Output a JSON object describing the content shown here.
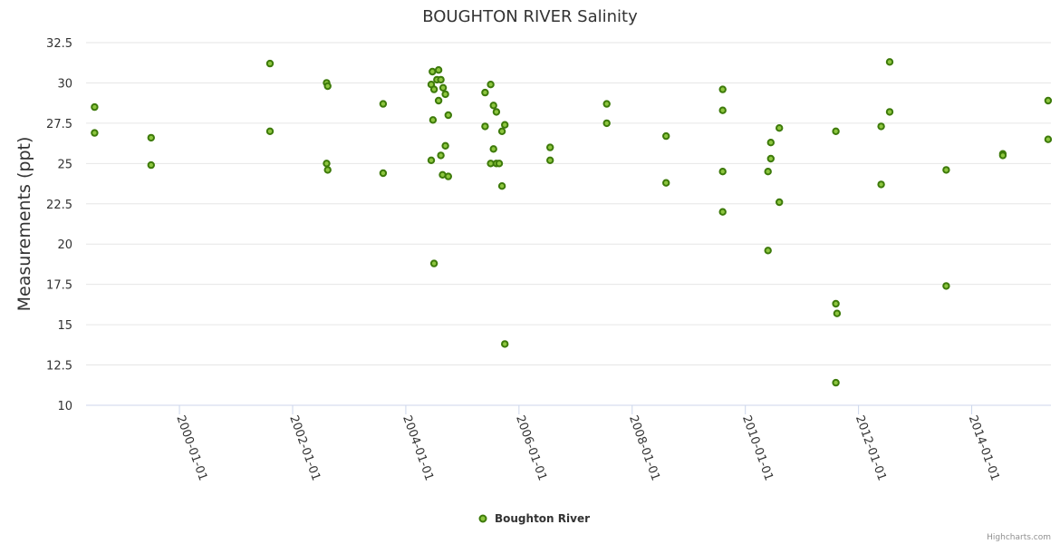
{
  "chart_data": {
    "type": "scatter",
    "title": "BOUGHTON RIVER Salinity",
    "ylabel": "Measurements (ppt)",
    "xlabel": "",
    "ylim": [
      10,
      32.5
    ],
    "y_ticks": [
      "10",
      "12.5",
      "15",
      "17.5",
      "20",
      "22.5",
      "25",
      "27.5",
      "30",
      "32.5"
    ],
    "xlim": [
      1998.35,
      2015.4
    ],
    "x_ticks": [
      {
        "year": 2000,
        "label": "2000-01-01"
      },
      {
        "year": 2002,
        "label": "2002-01-01"
      },
      {
        "year": 2004,
        "label": "2004-01-01"
      },
      {
        "year": 2006,
        "label": "2006-01-01"
      },
      {
        "year": 2008,
        "label": "2008-01-01"
      },
      {
        "year": 2010,
        "label": "2010-01-01"
      },
      {
        "year": 2012,
        "label": "2012-01-01"
      },
      {
        "year": 2014,
        "label": "2014-01-01"
      }
    ],
    "series": [
      {
        "name": "Boughton River",
        "color": "#8dc63f",
        "points": [
          [
            1998.5,
            28.5
          ],
          [
            1998.5,
            26.9
          ],
          [
            1999.5,
            26.6
          ],
          [
            1999.5,
            24.9
          ],
          [
            2001.6,
            31.2
          ],
          [
            2001.6,
            27.0
          ],
          [
            2002.6,
            30.0
          ],
          [
            2002.62,
            29.8
          ],
          [
            2002.6,
            25.0
          ],
          [
            2002.62,
            24.6
          ],
          [
            2003.6,
            28.7
          ],
          [
            2003.6,
            24.4
          ],
          [
            2004.45,
            29.9
          ],
          [
            2004.47,
            30.7
          ],
          [
            2004.5,
            29.6
          ],
          [
            2004.55,
            30.2
          ],
          [
            2004.58,
            30.8
          ],
          [
            2004.62,
            30.2
          ],
          [
            2004.66,
            29.7
          ],
          [
            2004.7,
            29.3
          ],
          [
            2004.58,
            28.9
          ],
          [
            2004.75,
            28.0
          ],
          [
            2004.48,
            27.7
          ],
          [
            2004.7,
            26.1
          ],
          [
            2004.62,
            25.5
          ],
          [
            2004.45,
            25.2
          ],
          [
            2004.65,
            24.3
          ],
          [
            2004.75,
            24.2
          ],
          [
            2004.5,
            18.8
          ],
          [
            2005.4,
            29.4
          ],
          [
            2005.5,
            29.9
          ],
          [
            2005.55,
            28.6
          ],
          [
            2005.6,
            28.2
          ],
          [
            2005.4,
            27.3
          ],
          [
            2005.75,
            27.4
          ],
          [
            2005.7,
            27.0
          ],
          [
            2005.55,
            25.9
          ],
          [
            2005.5,
            25.0
          ],
          [
            2005.6,
            25.0
          ],
          [
            2005.65,
            25.0
          ],
          [
            2005.7,
            23.6
          ],
          [
            2005.75,
            13.8
          ],
          [
            2006.55,
            26.0
          ],
          [
            2006.55,
            25.2
          ],
          [
            2007.55,
            28.7
          ],
          [
            2007.55,
            27.5
          ],
          [
            2008.6,
            26.7
          ],
          [
            2008.6,
            23.8
          ],
          [
            2009.6,
            29.6
          ],
          [
            2009.6,
            28.3
          ],
          [
            2009.6,
            24.5
          ],
          [
            2009.6,
            22.0
          ],
          [
            2010.45,
            26.3
          ],
          [
            2010.45,
            25.3
          ],
          [
            2010.4,
            24.5
          ],
          [
            2010.6,
            27.2
          ],
          [
            2010.6,
            22.6
          ],
          [
            2010.4,
            19.6
          ],
          [
            2011.6,
            27.0
          ],
          [
            2011.6,
            16.3
          ],
          [
            2011.62,
            15.7
          ],
          [
            2011.6,
            11.4
          ],
          [
            2012.4,
            27.3
          ],
          [
            2012.4,
            23.7
          ],
          [
            2012.55,
            31.3
          ],
          [
            2012.55,
            28.2
          ],
          [
            2013.55,
            24.6
          ],
          [
            2013.55,
            17.4
          ],
          [
            2014.55,
            25.6
          ],
          [
            2014.55,
            25.5
          ],
          [
            2015.35,
            28.9
          ],
          [
            2015.35,
            26.5
          ]
        ]
      }
    ]
  },
  "legend": {
    "label": "Boughton River"
  },
  "credits": "Highcharts.com"
}
